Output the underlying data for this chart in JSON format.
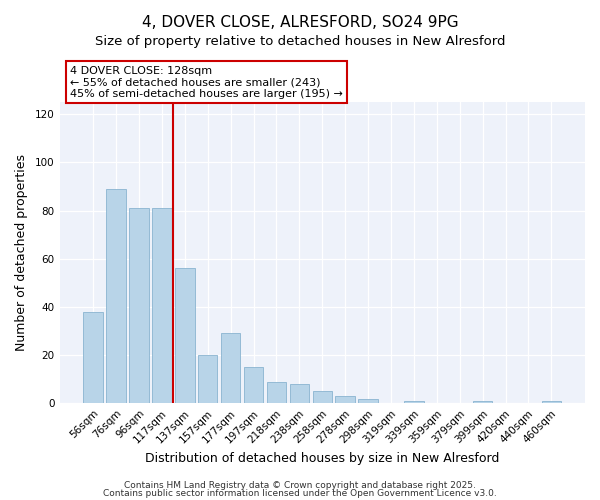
{
  "title": "4, DOVER CLOSE, ALRESFORD, SO24 9PG",
  "subtitle": "Size of property relative to detached houses in New Alresford",
  "xlabel": "Distribution of detached houses by size in New Alresford",
  "ylabel": "Number of detached properties",
  "categories": [
    "56sqm",
    "76sqm",
    "96sqm",
    "117sqm",
    "137sqm",
    "157sqm",
    "177sqm",
    "197sqm",
    "218sqm",
    "238sqm",
    "258sqm",
    "278sqm",
    "298sqm",
    "319sqm",
    "339sqm",
    "359sqm",
    "379sqm",
    "399sqm",
    "420sqm",
    "440sqm",
    "460sqm"
  ],
  "values": [
    38,
    89,
    81,
    81,
    56,
    20,
    29,
    15,
    9,
    8,
    5,
    3,
    2,
    0,
    1,
    0,
    0,
    1,
    0,
    0,
    1
  ],
  "bar_color": "#b8d4e8",
  "bar_edge_color": "#8ab4d0",
  "vline_x_index": 3.5,
  "vline_color": "#cc0000",
  "annotation_line1": "4 DOVER CLOSE: 128sqm",
  "annotation_line2": "← 55% of detached houses are smaller (243)",
  "annotation_line3": "45% of semi-detached houses are larger (195) →",
  "ylim": [
    0,
    125
  ],
  "yticks": [
    0,
    20,
    40,
    60,
    80,
    100,
    120
  ],
  "footer1": "Contains HM Land Registry data © Crown copyright and database right 2025.",
  "footer2": "Contains public sector information licensed under the Open Government Licence v3.0.",
  "background_color": "#ffffff",
  "plot_bg_color": "#eef2fa",
  "title_fontsize": 11,
  "subtitle_fontsize": 9.5,
  "label_fontsize": 9,
  "tick_fontsize": 7.5,
  "annotation_fontsize": 8,
  "footer_fontsize": 6.5
}
